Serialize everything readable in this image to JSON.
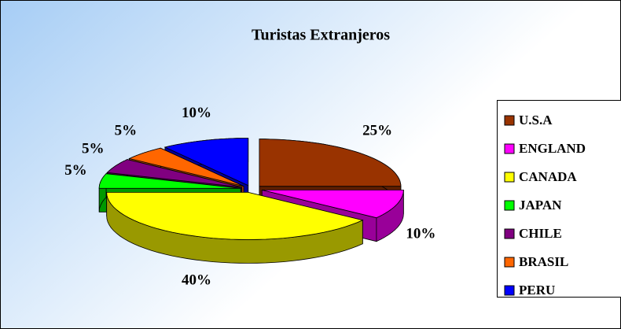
{
  "chart_data": {
    "type": "pie",
    "title": "Turistas Extranjeros",
    "categories": [
      "U.S.A",
      "ENGLAND",
      "CANADA",
      "JAPAN",
      "CHILE",
      "BRASIL",
      "PERU"
    ],
    "values": [
      25,
      10,
      40,
      5,
      5,
      5,
      10
    ],
    "value_labels": [
      "25%",
      "10%",
      "40%",
      "5%",
      "5%",
      "5%",
      "10%"
    ],
    "colors": [
      "#993300",
      "#ff00ff",
      "#ffff00",
      "#00ff00",
      "#800080",
      "#ff6600",
      "#0000ff"
    ],
    "legend": "right"
  }
}
